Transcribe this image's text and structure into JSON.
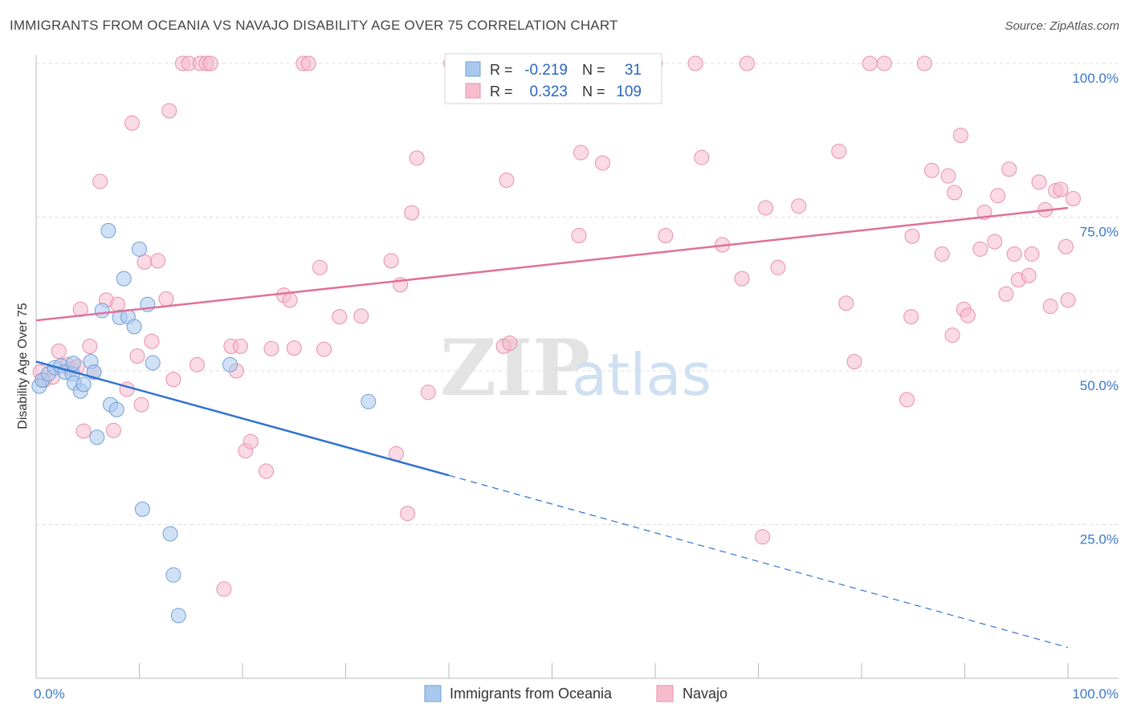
{
  "title": "IMMIGRANTS FROM OCEANIA VS NAVAJO DISABILITY AGE OVER 75 CORRELATION CHART",
  "source": "Source: ZipAtlas.com",
  "watermark": {
    "zip": "ZIP",
    "atlas": "atlas"
  },
  "colors": {
    "blue": "#a9c8ee",
    "blue_stroke": "#6f9fd8",
    "blue_line": "#2f73d0",
    "pink": "#f6bccd",
    "pink_stroke": "#e98fab",
    "pink_line": "#e0709a",
    "axis_label": "#3a78c9",
    "grid": "#dddddd"
  },
  "legend": {
    "rows": [
      {
        "r_label": "R =",
        "r_value": "-0.219",
        "n_label": "N =",
        "n_value": "31",
        "series": "blue"
      },
      {
        "r_label": "R =",
        "r_value": "0.323",
        "n_label": "N =",
        "n_value": "109",
        "series": "pink"
      }
    ]
  },
  "bottom_legend": [
    {
      "label": "Immigrants from Oceania",
      "series": "blue"
    },
    {
      "label": "Navajo",
      "series": "pink"
    }
  ],
  "chart_data": {
    "type": "scatter",
    "xlabel": "",
    "ylabel": "Disability Age Over 75",
    "xlim": [
      0,
      100
    ],
    "ylim": [
      0,
      100
    ],
    "x_tick_labels": [
      {
        "value": 0,
        "label": "0.0%"
      },
      {
        "value": 100,
        "label": "100.0%"
      }
    ],
    "y_tick_labels": [
      {
        "value": 100,
        "label": "100.0%"
      },
      {
        "value": 75,
        "label": "75.0%"
      },
      {
        "value": 50,
        "label": "50.0%"
      },
      {
        "value": 25,
        "label": "25.0%"
      }
    ],
    "grid": true,
    "series": [
      {
        "name": "Immigrants from Oceania",
        "color": "blue",
        "trend": {
          "x0": 0,
          "y0": 51.5,
          "x1": 40,
          "y1": 33.0,
          "dash_x1": 100,
          "dash_y1": 5.0
        },
        "points": [
          [
            0.3,
            47.5
          ],
          [
            0.6,
            48.5
          ],
          [
            1.2,
            49.5
          ],
          [
            1.8,
            50.5
          ],
          [
            2.4,
            50.8
          ],
          [
            2.8,
            49.8
          ],
          [
            3.5,
            49.5
          ],
          [
            3.6,
            51.2
          ],
          [
            3.7,
            48.0
          ],
          [
            4.3,
            46.7
          ],
          [
            4.6,
            47.8
          ],
          [
            5.3,
            51.5
          ],
          [
            5.6,
            49.8
          ],
          [
            5.9,
            39.2
          ],
          [
            6.4,
            59.8
          ],
          [
            7.0,
            72.8
          ],
          [
            7.2,
            44.5
          ],
          [
            7.8,
            43.7
          ],
          [
            8.1,
            58.7
          ],
          [
            8.5,
            65.0
          ],
          [
            8.9,
            58.8
          ],
          [
            9.5,
            57.2
          ],
          [
            10.0,
            69.8
          ],
          [
            10.3,
            27.5
          ],
          [
            10.8,
            60.8
          ],
          [
            11.3,
            51.3
          ],
          [
            13.0,
            23.5
          ],
          [
            13.3,
            16.8
          ],
          [
            13.8,
            10.2
          ],
          [
            18.8,
            51.0
          ],
          [
            32.2,
            45.0
          ]
        ]
      },
      {
        "name": "Navajo",
        "color": "pink",
        "trend": {
          "x0": 0,
          "y0": 58.2,
          "x1": 100,
          "y1": 76.5
        },
        "points": [
          [
            0.4,
            49.8
          ],
          [
            0.8,
            48.5
          ],
          [
            1.6,
            49.0
          ],
          [
            2.2,
            53.2
          ],
          [
            3.0,
            51.0
          ],
          [
            3.4,
            50.3
          ],
          [
            4.0,
            50.7
          ],
          [
            4.3,
            60.0
          ],
          [
            4.6,
            40.2
          ],
          [
            5.2,
            54.0
          ],
          [
            5.6,
            49.8
          ],
          [
            6.2,
            80.8
          ],
          [
            6.8,
            61.5
          ],
          [
            7.5,
            40.3
          ],
          [
            7.9,
            60.8
          ],
          [
            8.8,
            47.0
          ],
          [
            9.3,
            90.3
          ],
          [
            9.8,
            52.4
          ],
          [
            10.2,
            44.5
          ],
          [
            10.5,
            67.7
          ],
          [
            11.2,
            54.8
          ],
          [
            11.8,
            67.9
          ],
          [
            12.6,
            61.7
          ],
          [
            12.9,
            92.3
          ],
          [
            13.3,
            48.6
          ],
          [
            14.2,
            100.0
          ],
          [
            14.8,
            100.0
          ],
          [
            15.6,
            51.0
          ],
          [
            15.9,
            100.0
          ],
          [
            16.5,
            100.0
          ],
          [
            16.9,
            100.0
          ],
          [
            18.2,
            14.5
          ],
          [
            18.9,
            54.0
          ],
          [
            19.4,
            50.0
          ],
          [
            19.8,
            54.0
          ],
          [
            20.3,
            37.0
          ],
          [
            20.8,
            38.5
          ],
          [
            22.3,
            33.7
          ],
          [
            22.8,
            53.6
          ],
          [
            24.0,
            62.3
          ],
          [
            24.6,
            61.5
          ],
          [
            25.0,
            53.7
          ],
          [
            25.9,
            100.0
          ],
          [
            26.4,
            100.0
          ],
          [
            27.5,
            66.8
          ],
          [
            27.9,
            53.5
          ],
          [
            29.4,
            58.8
          ],
          [
            31.5,
            58.9
          ],
          [
            34.4,
            67.9
          ],
          [
            34.9,
            36.5
          ],
          [
            35.3,
            64.0
          ],
          [
            36.0,
            26.8
          ],
          [
            36.4,
            75.7
          ],
          [
            36.9,
            84.6
          ],
          [
            38.0,
            46.5
          ],
          [
            40.2,
            100.0
          ],
          [
            40.8,
            100.0
          ],
          [
            45.3,
            54.0
          ],
          [
            45.6,
            81.0
          ],
          [
            45.9,
            54.5
          ],
          [
            52.6,
            72.0
          ],
          [
            52.8,
            85.5
          ],
          [
            54.9,
            83.8
          ],
          [
            60.0,
            100.0
          ],
          [
            61.0,
            72.0
          ],
          [
            63.9,
            100.0
          ],
          [
            64.5,
            84.7
          ],
          [
            66.5,
            70.5
          ],
          [
            68.4,
            65.0
          ],
          [
            68.9,
            100.0
          ],
          [
            70.4,
            23.0
          ],
          [
            70.7,
            76.5
          ],
          [
            71.9,
            66.8
          ],
          [
            73.9,
            76.8
          ],
          [
            77.8,
            85.7
          ],
          [
            78.5,
            61.0
          ],
          [
            79.3,
            51.5
          ],
          [
            80.8,
            100.0
          ],
          [
            82.2,
            100.0
          ],
          [
            84.4,
            45.3
          ],
          [
            84.8,
            58.8
          ],
          [
            84.9,
            71.9
          ],
          [
            86.1,
            100.0
          ],
          [
            86.8,
            82.6
          ],
          [
            87.8,
            69.0
          ],
          [
            88.4,
            81.7
          ],
          [
            88.8,
            55.8
          ],
          [
            89.0,
            79.0
          ],
          [
            89.6,
            88.3
          ],
          [
            89.9,
            60.0
          ],
          [
            90.3,
            59.0
          ],
          [
            91.5,
            69.8
          ],
          [
            91.9,
            75.8
          ],
          [
            92.9,
            71.0
          ],
          [
            93.2,
            78.5
          ],
          [
            94.0,
            62.5
          ],
          [
            94.3,
            82.8
          ],
          [
            94.8,
            69.0
          ],
          [
            95.2,
            64.8
          ],
          [
            96.2,
            65.5
          ],
          [
            96.5,
            69.0
          ],
          [
            97.2,
            80.7
          ],
          [
            97.8,
            76.2
          ],
          [
            98.3,
            60.5
          ],
          [
            98.8,
            79.3
          ],
          [
            99.3,
            79.5
          ],
          [
            99.8,
            70.2
          ],
          [
            100.0,
            61.5
          ],
          [
            100.5,
            78.0
          ]
        ]
      }
    ]
  }
}
